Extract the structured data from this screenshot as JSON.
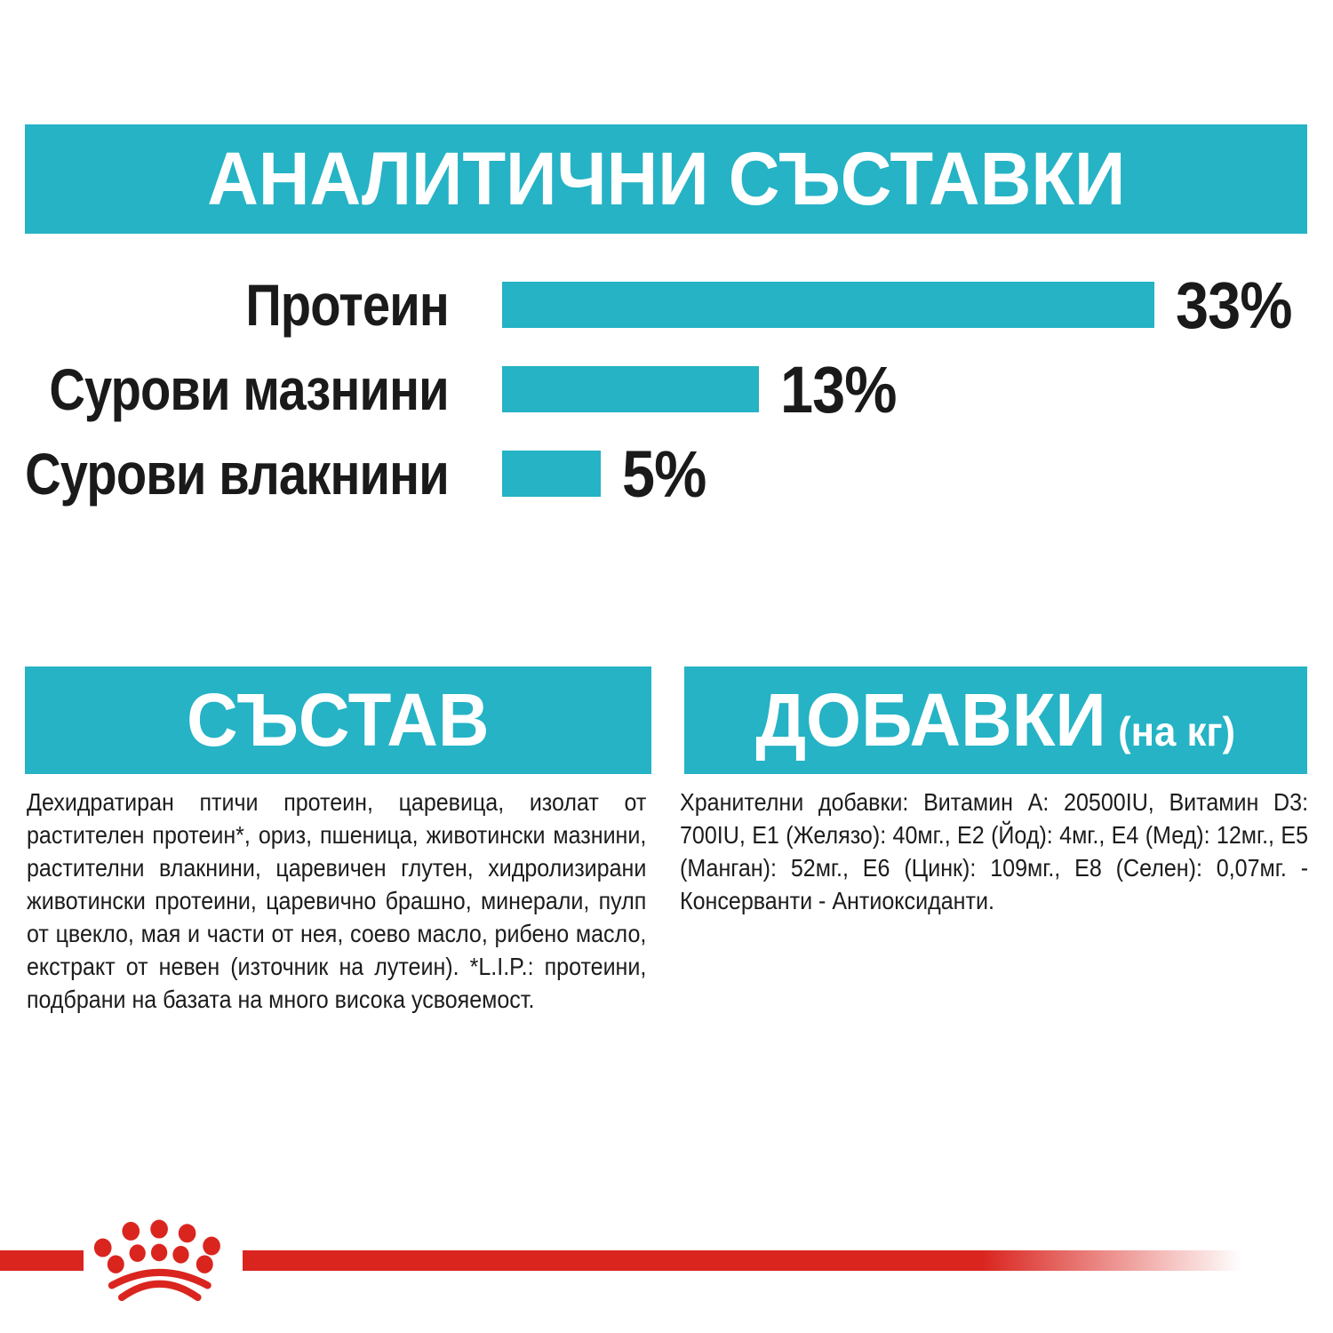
{
  "page": {
    "background": "#ffffff",
    "accent_teal": "#25b3c5",
    "brand_red": "#da251f",
    "text_color": "#1c1c1c"
  },
  "analytical_section": {
    "title": "АНАЛИТИЧНИ СЪСТАВКИ"
  },
  "chart_data": {
    "type": "bar",
    "orientation": "horizontal",
    "categories": [
      "Протеин",
      "Сурови мазнини",
      "Сурови влакнини"
    ],
    "values": [
      33,
      13,
      5
    ],
    "value_labels": [
      "33%",
      "13%",
      "5%"
    ],
    "unit": "%",
    "bar_color": "#25b3c5",
    "xlim": [
      0,
      40
    ],
    "grid": false,
    "legend": false,
    "title": "АНАЛИТИЧНИ СЪСТАВКИ"
  },
  "composition_section": {
    "title": "СЪСТАВ",
    "text": "Дехидратиран птичи протеин, царевица, изолат от растителен протеин*, ориз, пшеница, животински мазнини, растителни влакнини, царевичен глутен, хидролизирани животински протеини, царевично брашно, минерали, пулп от цвекло, мая и части от нея, соево масло, рибено масло, екстракт от невен (източник на лутеин). *L.I.P.: протеини, подбрани на базата на много висока усвояемост."
  },
  "additives_section": {
    "title": "ДОБАВКИ",
    "title_suffix": "(на кг)",
    "text": "Хранителни добавки: Витамин A: 20500IU, Витамин D3: 700IU, E1 (Желязо): 40мг., E2 (Йод): 4мг., E4 (Мед): 12мг., E5 (Манган): 52мг., E6 (Цинк): 109мг., E8 (Селен): 0,07мг. - Консерванти - Антиоксиданти."
  },
  "footer": {
    "logo": "royal-canin-crown"
  }
}
